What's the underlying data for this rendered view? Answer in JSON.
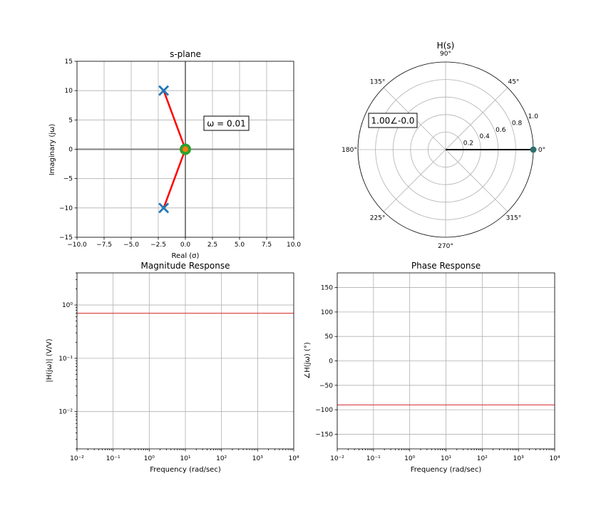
{
  "chart_data": [
    {
      "type": "scatter",
      "title": "s-plane",
      "xlabel": "Real (σ)",
      "ylabel": "Imaginary (jω)",
      "xlim": [
        -10,
        10
      ],
      "ylim": [
        -15,
        15
      ],
      "xticks": [
        -10,
        -7.5,
        -5,
        -2.5,
        0,
        2.5,
        5,
        7.5,
        10
      ],
      "xtick_labels": [
        "−10.0",
        "−7.5",
        "−5.0",
        "−2.5",
        "0.0",
        "2.5",
        "5.0",
        "7.5",
        "10.0"
      ],
      "yticks": [
        -15,
        -10,
        -5,
        0,
        5,
        10,
        15
      ],
      "ytick_labels": [
        "−15",
        "−10",
        "−5",
        "0",
        "5",
        "10",
        "15"
      ],
      "grid": true,
      "poles": [
        {
          "re": -2,
          "im": 10
        },
        {
          "re": -2,
          "im": -10
        }
      ],
      "zeros": [
        {
          "re": 0,
          "im": 0
        }
      ],
      "test_point": {
        "re": 0,
        "im": 0.01
      },
      "annotation": "ω = 0.01",
      "colors": {
        "pole": "#1f77b4",
        "zero": "#2ca02c",
        "vector": "#ff0000",
        "test_point": "#ff7f0e",
        "axis": "#808080"
      }
    },
    {
      "type": "polar",
      "title": "H(s)",
      "angle_ticks": [
        0,
        45,
        90,
        135,
        180,
        225,
        270,
        315
      ],
      "angle_labels": [
        "0°",
        "45°",
        "90°",
        "135°",
        "180°",
        "225°",
        "270°",
        "315°"
      ],
      "radial_ticks": [
        0.2,
        0.4,
        0.6,
        0.8,
        1.0
      ],
      "radial_labels": [
        "0.2",
        "0.4",
        "0.6",
        "0.8",
        "1.0"
      ],
      "rmax": 1.0,
      "vector": {
        "magnitude": 1.0,
        "angle_deg": 0
      },
      "annotation": "1.00∠-0.0",
      "colors": {
        "vector": "#000000",
        "marker": "#2f6f6f"
      }
    },
    {
      "type": "line",
      "title": "Magnitude Response",
      "xlabel": "Frequency (rad/sec)",
      "ylabel": "|H(jω)| (V/V)",
      "xscale": "log",
      "yscale": "log",
      "xlim": [
        0.01,
        10000
      ],
      "ylim": [
        0.002,
        4
      ],
      "xtick_exponents": [
        -2,
        -1,
        0,
        1,
        2,
        3,
        4
      ],
      "ytick_exponents": [
        -2,
        -1,
        0
      ],
      "grid": true,
      "series": [
        {
          "x": [
            0.01,
            10000
          ],
          "y": [
            0.7,
            0.7
          ],
          "color": "#d62728"
        }
      ]
    },
    {
      "type": "line",
      "title": "Phase Response",
      "xlabel": "Frequency (rad/sec)",
      "ylabel": "∠H(jω) (°)",
      "xscale": "log",
      "xlim": [
        0.01,
        10000
      ],
      "ylim": [
        -180,
        180
      ],
      "xtick_exponents": [
        -2,
        -1,
        0,
        1,
        2,
        3,
        4
      ],
      "yticks": [
        -150,
        -100,
        -50,
        0,
        50,
        100,
        150
      ],
      "ytick_labels": [
        "−150",
        "−100",
        "−50",
        "0",
        "50",
        "100",
        "150"
      ],
      "grid": true,
      "series": [
        {
          "x": [
            0.01,
            10000
          ],
          "y": [
            -90,
            -90
          ],
          "color": "#d62728"
        }
      ]
    }
  ]
}
